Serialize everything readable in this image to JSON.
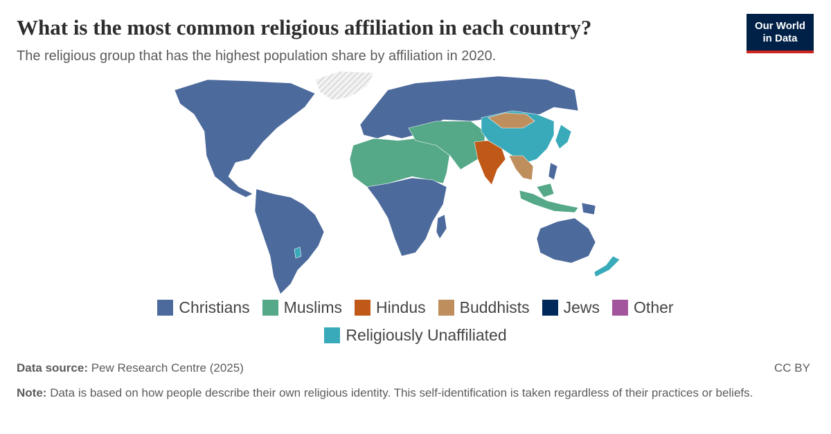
{
  "header": {
    "title": "What is the most common religious affiliation in each country?",
    "subtitle": "The religious group that has the highest population share by affiliation in 2020.",
    "logo": [
      "Our World",
      "in Data"
    ]
  },
  "legend": [
    {
      "name": "Christians",
      "color": "#4c6a9c"
    },
    {
      "name": "Muslims",
      "color": "#55a888"
    },
    {
      "name": "Hindus",
      "color": "#c05917"
    },
    {
      "name": "Buddhists",
      "color": "#bf8e5d"
    },
    {
      "name": "Jews",
      "color": "#00295b"
    },
    {
      "name": "Other",
      "color": "#a2559c"
    },
    {
      "name": "Religiously Unaffiliated",
      "color": "#38aaba"
    }
  ],
  "footer": {
    "source_label": "Data source:",
    "source": "Pew Research Centre (2025)",
    "license": "CC BY",
    "note_label": "Note:",
    "note": "Data is based on how people describe their own religious identity. This self-identification is taken regardless of their practices or beliefs."
  }
}
